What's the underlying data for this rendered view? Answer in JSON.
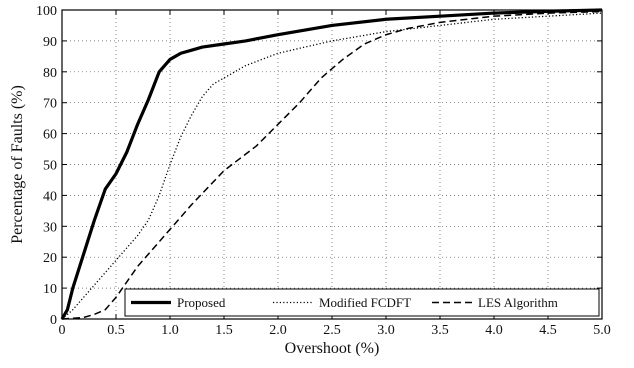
{
  "chart_data": {
    "type": "line",
    "title": "",
    "xlabel": "Overshoot (%)",
    "ylabel": "Percentage of Faults (%)",
    "xlim": [
      0,
      5
    ],
    "ylim": [
      0,
      100
    ],
    "x_ticks": [
      "0",
      "0.5",
      "1.0",
      "1.5",
      "2.0",
      "2.5",
      "3.0",
      "3.5",
      "4.0",
      "4.5",
      "5.0"
    ],
    "y_ticks": [
      "0",
      "10",
      "20",
      "30",
      "40",
      "50",
      "60",
      "70",
      "80",
      "90",
      "100"
    ],
    "grid": true,
    "legend_position": "bottom-right",
    "series": [
      {
        "name": "Proposed",
        "style": "solid",
        "color": "#000000",
        "points": [
          [
            0,
            0
          ],
          [
            0.05,
            3
          ],
          [
            0.1,
            10
          ],
          [
            0.2,
            21
          ],
          [
            0.3,
            32
          ],
          [
            0.4,
            42
          ],
          [
            0.5,
            47
          ],
          [
            0.6,
            54
          ],
          [
            0.7,
            63
          ],
          [
            0.8,
            71
          ],
          [
            0.9,
            80
          ],
          [
            1.0,
            84
          ],
          [
            1.1,
            86
          ],
          [
            1.2,
            87
          ],
          [
            1.3,
            88
          ],
          [
            1.5,
            89
          ],
          [
            1.7,
            90
          ],
          [
            2.0,
            92
          ],
          [
            2.5,
            95
          ],
          [
            3.0,
            97
          ],
          [
            3.5,
            98
          ],
          [
            4.0,
            99
          ],
          [
            4.5,
            99.6
          ],
          [
            5.0,
            100
          ]
        ]
      },
      {
        "name": "Modified FCDFT",
        "style": "dotted",
        "color": "#000000",
        "points": [
          [
            0,
            0
          ],
          [
            0.1,
            3
          ],
          [
            0.2,
            7
          ],
          [
            0.3,
            11
          ],
          [
            0.4,
            15
          ],
          [
            0.5,
            19
          ],
          [
            0.6,
            23
          ],
          [
            0.7,
            27
          ],
          [
            0.8,
            32
          ],
          [
            0.9,
            40
          ],
          [
            1.0,
            50
          ],
          [
            1.1,
            59
          ],
          [
            1.2,
            66
          ],
          [
            1.3,
            72
          ],
          [
            1.4,
            76
          ],
          [
            1.5,
            78
          ],
          [
            1.7,
            82
          ],
          [
            2.0,
            86
          ],
          [
            2.5,
            90
          ],
          [
            3.0,
            93
          ],
          [
            3.5,
            95
          ],
          [
            4.0,
            97
          ],
          [
            4.5,
            98
          ],
          [
            5.0,
            99
          ]
        ]
      },
      {
        "name": "LES Algorithm",
        "style": "dashed",
        "color": "#000000",
        "points": [
          [
            0,
            0
          ],
          [
            0.2,
            0.5
          ],
          [
            0.3,
            1.5
          ],
          [
            0.4,
            3
          ],
          [
            0.5,
            7
          ],
          [
            0.6,
            12
          ],
          [
            0.7,
            17
          ],
          [
            0.8,
            21
          ],
          [
            1.0,
            29
          ],
          [
            1.2,
            37
          ],
          [
            1.5,
            48
          ],
          [
            1.8,
            56
          ],
          [
            2.0,
            63
          ],
          [
            2.2,
            70
          ],
          [
            2.4,
            78
          ],
          [
            2.6,
            84
          ],
          [
            2.8,
            89
          ],
          [
            3.0,
            92
          ],
          [
            3.2,
            94
          ],
          [
            3.5,
            96
          ],
          [
            4.0,
            98
          ],
          [
            4.5,
            99
          ],
          [
            5.0,
            99.5
          ]
        ]
      }
    ]
  }
}
